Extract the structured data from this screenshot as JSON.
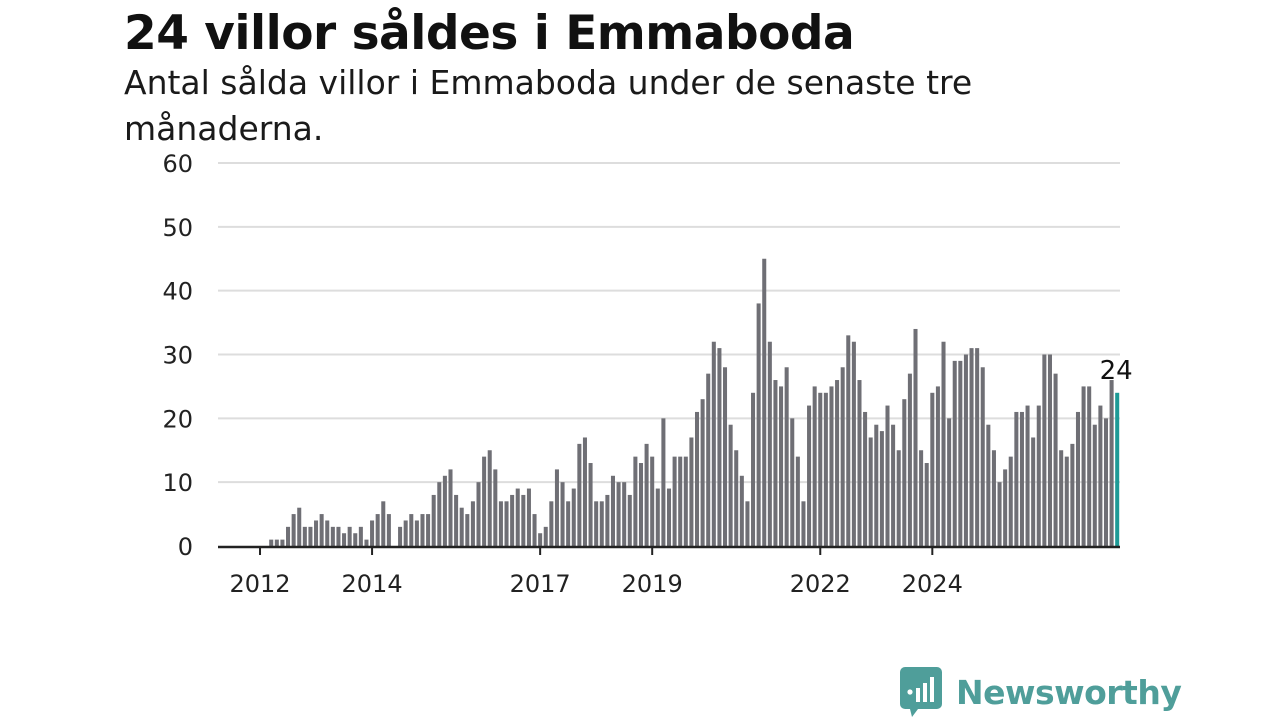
{
  "title": "24 villor såldes i Emmaboda",
  "subtitle": "Antal sålda villor i Emmaboda under de senaste tre månaderna.",
  "brand": {
    "name": "Newsworthy",
    "icon": "newsworthy-logo-icon",
    "color": "#4f9e9a"
  },
  "colors": {
    "bar": "#6f6f75",
    "highlight": "#1d9a96",
    "grid": "#dddddd",
    "axis": "#222222"
  },
  "chart_data": {
    "type": "bar",
    "title": "24 villor såldes i Emmaboda",
    "subtitle": "Antal sålda villor i Emmaboda under de senaste tre månaderna.",
    "xlabel": "",
    "ylabel": "",
    "ylim": [
      0,
      60
    ],
    "yticks": [
      0,
      10,
      20,
      30,
      40,
      50,
      60
    ],
    "grid": true,
    "xtick_labels": [
      {
        "label": "2012",
        "index": 7
      },
      {
        "label": "2014",
        "index": 27
      },
      {
        "label": "2017",
        "index": 57
      },
      {
        "label": "2019",
        "index": 77
      },
      {
        "label": "2022",
        "index": 107
      },
      {
        "label": "2024",
        "index": 127
      }
    ],
    "highlight_last": true,
    "last_value_label": "24",
    "values": [
      0,
      0,
      0,
      0,
      0,
      0,
      0,
      0,
      0,
      1,
      1,
      1,
      3,
      5,
      6,
      3,
      3,
      4,
      5,
      4,
      3,
      3,
      2,
      3,
      2,
      3,
      1,
      4,
      5,
      7,
      5,
      0,
      3,
      4,
      5,
      4,
      5,
      5,
      8,
      10,
      11,
      12,
      8,
      6,
      5,
      7,
      10,
      14,
      15,
      12,
      7,
      7,
      8,
      9,
      8,
      9,
      5,
      2,
      3,
      7,
      12,
      10,
      7,
      9,
      16,
      17,
      13,
      7,
      7,
      8,
      11,
      10,
      10,
      8,
      14,
      13,
      16,
      14,
      9,
      20,
      9,
      14,
      14,
      14,
      17,
      21,
      23,
      27,
      32,
      31,
      28,
      19,
      15,
      11,
      7,
      24,
      38,
      45,
      32,
      26,
      25,
      28,
      20,
      14,
      7,
      22,
      25,
      24,
      24,
      25,
      26,
      28,
      33,
      32,
      26,
      21,
      17,
      19,
      18,
      22,
      19,
      15,
      23,
      27,
      34,
      15,
      13,
      24,
      25,
      32,
      20,
      29,
      29,
      30,
      31,
      31,
      28,
      19,
      15,
      10,
      12,
      14,
      21,
      21,
      22,
      17,
      22,
      30,
      30,
      27,
      15,
      14,
      16,
      21,
      25,
      25,
      19,
      22,
      20,
      26,
      24
    ]
  }
}
